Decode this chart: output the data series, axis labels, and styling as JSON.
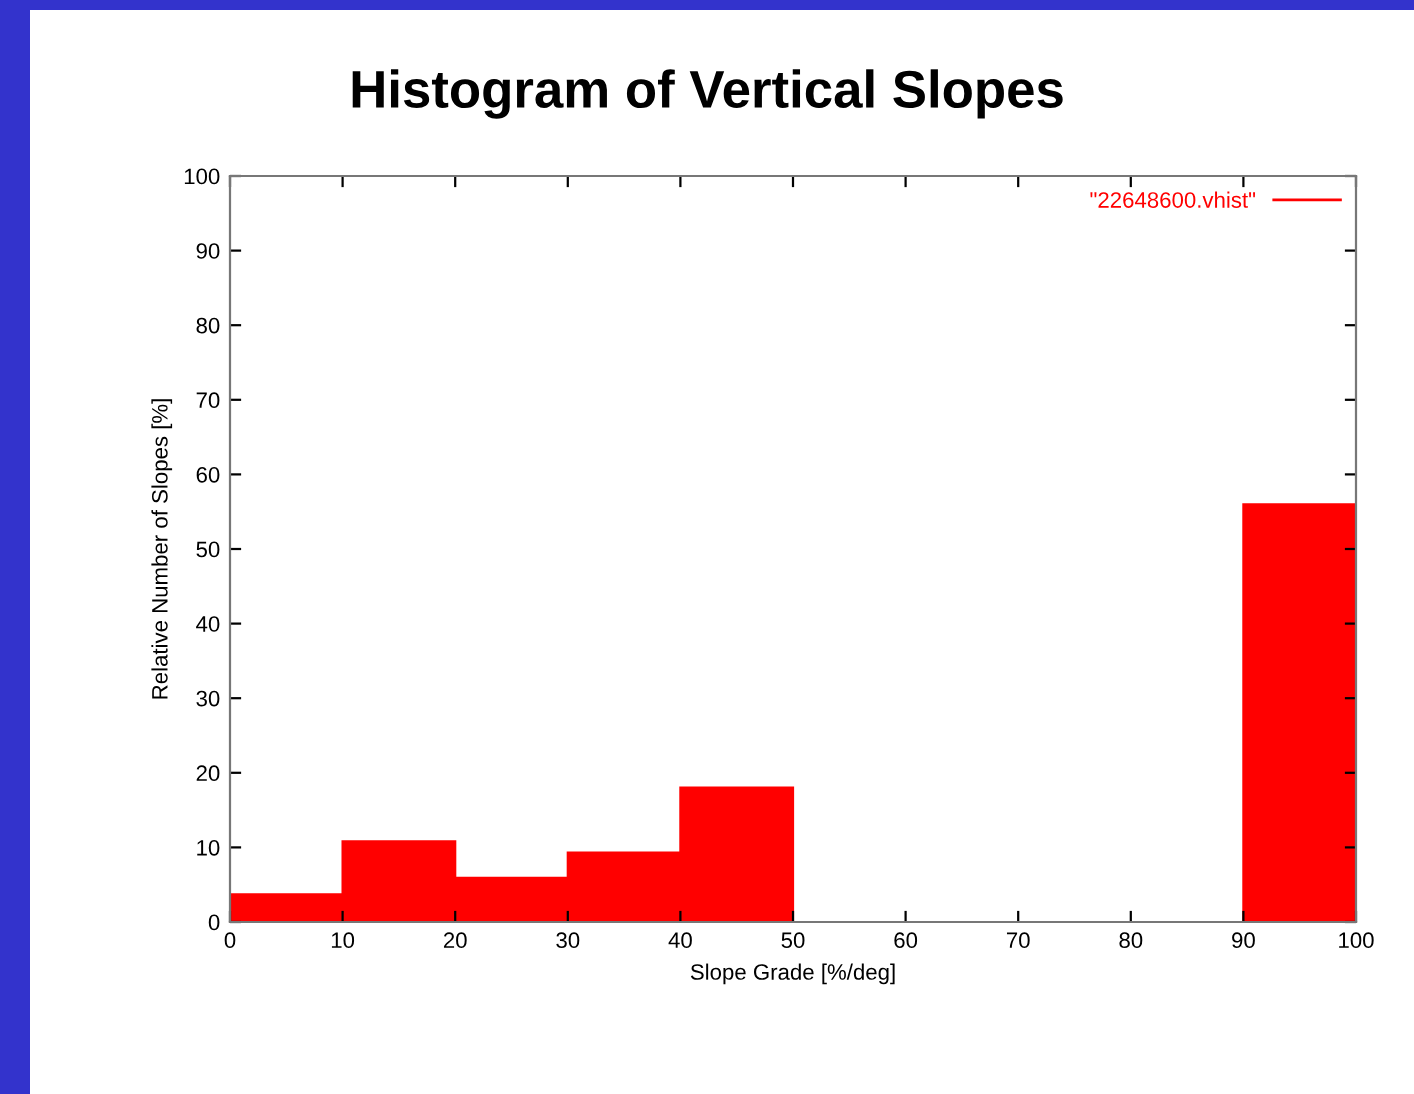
{
  "chart_data": {
    "type": "histogram",
    "title": "Histogram of Vertical Slopes",
    "xlabel": "Slope Grade [%/deg]",
    "ylabel": "Relative Number of Slopes [%]",
    "bins": [
      0,
      10,
      20,
      30,
      40,
      50,
      60,
      70,
      80,
      90,
      100
    ],
    "series": [
      {
        "name": "\"22648600.vhist\"",
        "color": "#ff0000",
        "values": [
          3.7,
          10.8,
          5.9,
          9.3,
          18.0,
          0,
          0,
          0,
          0,
          56.0
        ]
      }
    ],
    "xlim": [
      0,
      100
    ],
    "ylim": [
      0,
      100
    ],
    "xticks": [
      0,
      10,
      20,
      30,
      40,
      50,
      60,
      70,
      80,
      90,
      100
    ],
    "yticks": [
      0,
      10,
      20,
      30,
      40,
      50,
      60,
      70,
      80,
      90,
      100
    ],
    "grid": false,
    "legend": "top right"
  }
}
